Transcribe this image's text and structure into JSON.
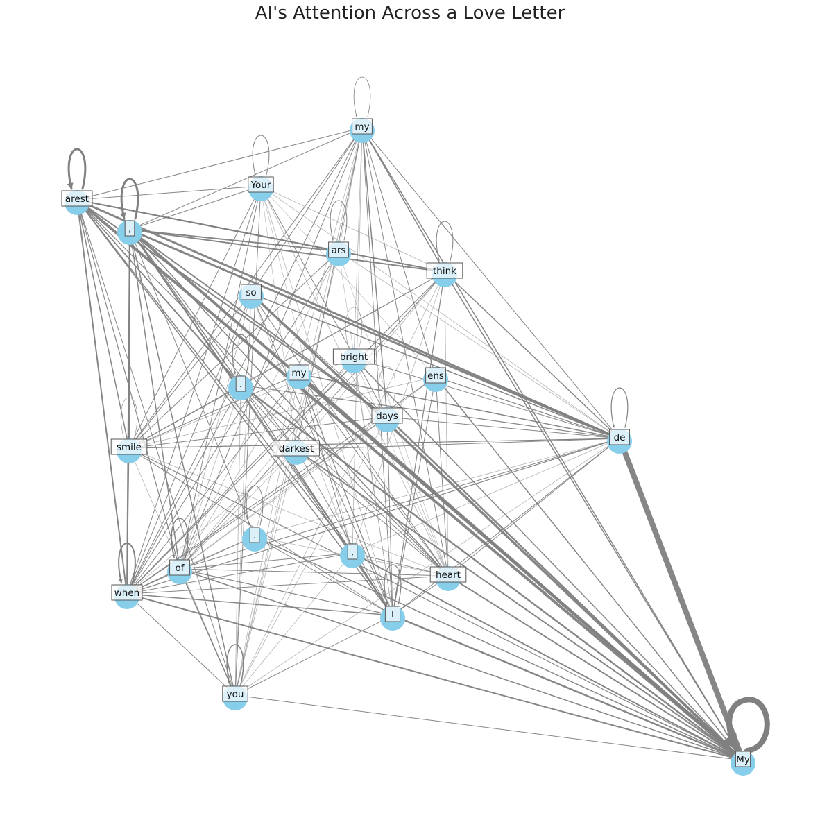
{
  "title": "AI's Attention Across a Love Letter",
  "colors": {
    "node": "#87ceeb",
    "edge": "#808080",
    "label_bg": "#ffffff",
    "label_border": "#555555"
  },
  "nodes": [
    {
      "id": "my_top",
      "label": " my"
    },
    {
      "id": "your",
      "label": "Your"
    },
    {
      "id": "arest",
      "label": "arest"
    },
    {
      "id": "comma1",
      "label": ","
    },
    {
      "id": "ars",
      "label": "ars"
    },
    {
      "id": "think",
      "label": " think"
    },
    {
      "id": "so",
      "label": " so"
    },
    {
      "id": "bright",
      "label": " bright"
    },
    {
      "id": "my_mid",
      "label": " my"
    },
    {
      "id": "period1",
      "label": "."
    },
    {
      "id": "ens",
      "label": "ens"
    },
    {
      "id": "days",
      "label": " days"
    },
    {
      "id": "smile",
      "label": " smile"
    },
    {
      "id": "darkest",
      "label": " darkest"
    },
    {
      "id": "de",
      "label": " de"
    },
    {
      "id": "period2",
      "label": "."
    },
    {
      "id": "comma2",
      "label": ","
    },
    {
      "id": "of",
      "label": " of"
    },
    {
      "id": "heart",
      "label": " heart"
    },
    {
      "id": "when",
      "label": " when"
    },
    {
      "id": "i",
      "label": " I"
    },
    {
      "id": "you",
      "label": " you"
    },
    {
      "id": "My",
      "label": "My"
    }
  ],
  "edges": [
    {
      "s": "My",
      "t": "My",
      "w": 8
    },
    {
      "s": "de",
      "t": "My",
      "w": 8
    },
    {
      "s": "arest",
      "t": "arest",
      "w": 3
    },
    {
      "s": "comma1",
      "t": "comma1",
      "w": 3
    },
    {
      "s": "when",
      "t": "when",
      "w": 2
    },
    {
      "s": "of",
      "t": "of",
      "w": 1.5
    },
    {
      "s": "i",
      "t": "i",
      "w": 1.2
    },
    {
      "s": "you",
      "t": "you",
      "w": 1.5
    },
    {
      "s": "period1",
      "t": "period1",
      "w": 1.2
    },
    {
      "s": "period2",
      "t": "period2",
      "w": 1
    },
    {
      "s": "my_top",
      "t": "my_top",
      "w": 0.8
    },
    {
      "s": "your",
      "t": "your",
      "w": 1
    },
    {
      "s": "ars",
      "t": "ars",
      "w": 1
    },
    {
      "s": "think",
      "t": "think",
      "w": 1
    },
    {
      "s": "de",
      "t": "de",
      "w": 1.2
    },
    {
      "s": "smile",
      "t": "smile",
      "w": 0.6
    },
    {
      "s": "bright",
      "t": "bright",
      "w": 0.5
    },
    {
      "s": "days",
      "t": "days",
      "w": 0.5
    },
    {
      "s": "arest",
      "t": "My",
      "w": 4
    },
    {
      "s": "comma1",
      "t": "My",
      "w": 4
    },
    {
      "s": "so",
      "t": "My",
      "w": 3.5
    },
    {
      "s": "my_mid",
      "t": "My",
      "w": 3.5
    },
    {
      "s": "comma1",
      "t": "de",
      "w": 3
    },
    {
      "s": "arest",
      "t": "de",
      "w": 3
    },
    {
      "s": "arest",
      "t": "ars",
      "w": 2
    },
    {
      "s": "arest",
      "t": "think",
      "w": 2
    },
    {
      "s": "comma1",
      "t": "ars",
      "w": 2
    },
    {
      "s": "comma1",
      "t": "think",
      "w": 2
    },
    {
      "s": "days",
      "t": "My",
      "w": 2.5
    },
    {
      "s": "period1",
      "t": "My",
      "w": 2.5
    },
    {
      "s": "comma2",
      "t": "My",
      "w": 2
    },
    {
      "s": "i",
      "t": "My",
      "w": 2.5
    },
    {
      "s": "when",
      "t": "My",
      "w": 2
    },
    {
      "s": "darkest",
      "t": "My",
      "w": 2
    },
    {
      "s": "heart",
      "t": "My",
      "w": 2
    },
    {
      "s": "think",
      "t": "My",
      "w": 1.5
    },
    {
      "s": "ens",
      "t": "My",
      "w": 1.5
    },
    {
      "s": "bright",
      "t": "My",
      "w": 1.5
    },
    {
      "s": "my_top",
      "t": "My",
      "w": 1.5
    },
    {
      "s": "you",
      "t": "My",
      "w": 1
    },
    {
      "s": "of",
      "t": "My",
      "w": 1.5
    },
    {
      "s": "smile",
      "t": "My",
      "w": 1.2
    },
    {
      "s": "period2",
      "t": "My",
      "w": 1.5
    },
    {
      "s": "arest",
      "t": "when",
      "w": 2
    },
    {
      "s": "arest",
      "t": "smile",
      "w": 1.5
    },
    {
      "s": "comma1",
      "t": "smile",
      "w": 2
    },
    {
      "s": "comma1",
      "t": "when",
      "w": 2
    },
    {
      "s": "comma1",
      "t": "of",
      "w": 1.5
    },
    {
      "s": "comma1",
      "t": "you",
      "w": 1.5
    },
    {
      "s": "arest",
      "t": "days",
      "w": 2
    },
    {
      "s": "arest",
      "t": "i",
      "w": 1.5
    },
    {
      "s": "arest",
      "t": "comma2",
      "w": 1.5
    },
    {
      "s": "comma1",
      "t": "days",
      "w": 2
    },
    {
      "s": "comma1",
      "t": "i",
      "w": 1.5
    },
    {
      "s": "comma1",
      "t": "heart",
      "w": 1.5
    },
    {
      "s": "arest",
      "t": "my_top",
      "w": 1
    },
    {
      "s": "arest",
      "t": "your",
      "w": 1
    },
    {
      "s": "comma1",
      "t": "my_top",
      "w": 1
    },
    {
      "s": "comma1",
      "t": "your",
      "w": 1
    },
    {
      "s": "my_top",
      "t": "think",
      "w": 1.5
    },
    {
      "s": "my_top",
      "t": "days",
      "w": 1.5
    },
    {
      "s": "my_top",
      "t": "de",
      "w": 1
    },
    {
      "s": "my_top",
      "t": "so",
      "w": 1
    },
    {
      "s": "my_top",
      "t": "ens",
      "w": 1
    },
    {
      "s": "my_top",
      "t": "smile",
      "w": 1
    },
    {
      "s": "my_top",
      "t": "when",
      "w": 1
    },
    {
      "s": "my_top",
      "t": "of",
      "w": 1
    },
    {
      "s": "my_top",
      "t": "heart",
      "w": 1
    },
    {
      "s": "my_top",
      "t": "i",
      "w": 1
    },
    {
      "s": "my_top",
      "t": "darkest",
      "w": 1
    },
    {
      "s": "my_top",
      "t": "period2",
      "w": 0.8
    },
    {
      "s": "my_top",
      "t": "comma2",
      "w": 0.8
    },
    {
      "s": "my_top",
      "t": "you",
      "w": 0.8
    },
    {
      "s": "my_top",
      "t": "ars",
      "w": 0.8
    },
    {
      "s": "my_top",
      "t": "bright",
      "w": 0.8
    },
    {
      "s": "your",
      "t": "days",
      "w": 1
    },
    {
      "s": "your",
      "t": "when",
      "w": 1
    },
    {
      "s": "your",
      "t": "smile",
      "w": 1
    },
    {
      "s": "your",
      "t": "of",
      "w": 1
    },
    {
      "s": "your",
      "t": "you",
      "w": 1
    },
    {
      "s": "your",
      "t": "heart",
      "w": 0.8
    },
    {
      "s": "your",
      "t": "i",
      "w": 0.8
    },
    {
      "s": "your",
      "t": "de",
      "w": 0.8
    },
    {
      "s": "your",
      "t": "think",
      "w": 0.8
    },
    {
      "s": "your",
      "t": "comma2",
      "w": 0.6
    },
    {
      "s": "your",
      "t": "darkest",
      "w": 0.6
    },
    {
      "s": "your",
      "t": "ens",
      "w": 0.6
    },
    {
      "s": "ars",
      "t": "think",
      "w": 1.2
    },
    {
      "s": "ars",
      "t": "smile",
      "w": 1
    },
    {
      "s": "ars",
      "t": "when",
      "w": 1
    },
    {
      "s": "ars",
      "t": "de",
      "w": 0.8
    },
    {
      "s": "ars",
      "t": "you",
      "w": 0.8
    },
    {
      "s": "ars",
      "t": "of",
      "w": 0.8
    },
    {
      "s": "ars",
      "t": "i",
      "w": 0.6
    },
    {
      "s": "ars",
      "t": "heart",
      "w": 0.6
    },
    {
      "s": "think",
      "t": "de",
      "w": 1.5
    },
    {
      "s": "think",
      "t": "smile",
      "w": 1
    },
    {
      "s": "think",
      "t": "when",
      "w": 1.2
    },
    {
      "s": "think",
      "t": "of",
      "w": 1
    },
    {
      "s": "think",
      "t": "i",
      "w": 1.2
    },
    {
      "s": "think",
      "t": "you",
      "w": 0.8
    },
    {
      "s": "think",
      "t": "period1",
      "w": 0.8
    },
    {
      "s": "think",
      "t": "heart",
      "w": 0.8
    },
    {
      "s": "think",
      "t": "darkest",
      "w": 0.8
    },
    {
      "s": "think",
      "t": "comma2",
      "w": 0.8
    },
    {
      "s": "so",
      "t": "de",
      "w": 1.5
    },
    {
      "s": "so",
      "t": "smile",
      "w": 1
    },
    {
      "s": "so",
      "t": "when",
      "w": 1
    },
    {
      "s": "so",
      "t": "i",
      "w": 1
    },
    {
      "s": "so",
      "t": "you",
      "w": 0.8
    },
    {
      "s": "so",
      "t": "heart",
      "w": 1
    },
    {
      "s": "so",
      "t": "days",
      "w": 1
    },
    {
      "s": "so",
      "t": "comma2",
      "w": 0.8
    },
    {
      "s": "so",
      "t": "of",
      "w": 0.8
    },
    {
      "s": "my_mid",
      "t": "de",
      "w": 1.5
    },
    {
      "s": "my_mid",
      "t": "i",
      "w": 1.2
    },
    {
      "s": "my_mid",
      "t": "when",
      "w": 1
    },
    {
      "s": "my_mid",
      "t": "smile",
      "w": 1
    },
    {
      "s": "my_mid",
      "t": "heart",
      "w": 1
    },
    {
      "s": "my_mid",
      "t": "you",
      "w": 0.8
    },
    {
      "s": "my_mid",
      "t": "of",
      "w": 0.8
    },
    {
      "s": "my_mid",
      "t": "comma2",
      "w": 1
    },
    {
      "s": "period1",
      "t": "de",
      "w": 1.2
    },
    {
      "s": "period1",
      "t": "i",
      "w": 1
    },
    {
      "s": "period1",
      "t": "heart",
      "w": 1
    },
    {
      "s": "period1",
      "t": "when",
      "w": 1
    },
    {
      "s": "period1",
      "t": "smile",
      "w": 1
    },
    {
      "s": "period1",
      "t": "comma2",
      "w": 1
    },
    {
      "s": "period1",
      "t": "you",
      "w": 0.8
    },
    {
      "s": "period1",
      "t": "of",
      "w": 0.8
    },
    {
      "s": "ens",
      "t": "de",
      "w": 1.2
    },
    {
      "s": "ens",
      "t": "i",
      "w": 1
    },
    {
      "s": "ens",
      "t": "heart",
      "w": 1
    },
    {
      "s": "ens",
      "t": "when",
      "w": 1
    },
    {
      "s": "ens",
      "t": "smile",
      "w": 0.8
    },
    {
      "s": "ens",
      "t": "of",
      "w": 0.8
    },
    {
      "s": "bright",
      "t": "de",
      "w": 1
    },
    {
      "s": "bright",
      "t": "when",
      "w": 1
    },
    {
      "s": "bright",
      "t": "i",
      "w": 0.8
    },
    {
      "s": "bright",
      "t": "smile",
      "w": 0.8
    },
    {
      "s": "bright",
      "t": "of",
      "w": 0.8
    },
    {
      "s": "bright",
      "t": "heart",
      "w": 0.6
    },
    {
      "s": "days",
      "t": "de",
      "w": 1
    },
    {
      "s": "days",
      "t": "i",
      "w": 1
    },
    {
      "s": "days",
      "t": "when",
      "w": 1
    },
    {
      "s": "days",
      "t": "smile",
      "w": 1
    },
    {
      "s": "days",
      "t": "of",
      "w": 0.8
    },
    {
      "s": "days",
      "t": "heart",
      "w": 0.8
    },
    {
      "s": "days",
      "t": "you",
      "w": 0.8
    },
    {
      "s": "smile",
      "t": "de",
      "w": 1
    },
    {
      "s": "smile",
      "t": "when",
      "w": 1
    },
    {
      "s": "smile",
      "t": "i",
      "w": 1
    },
    {
      "s": "smile",
      "t": "heart",
      "w": 0.8
    },
    {
      "s": "smile",
      "t": "you",
      "w": 0.8
    },
    {
      "s": "darkest",
      "t": "de",
      "w": 1
    },
    {
      "s": "darkest",
      "t": "i",
      "w": 1
    },
    {
      "s": "darkest",
      "t": "heart",
      "w": 1
    },
    {
      "s": "darkest",
      "t": "when",
      "w": 0.8
    },
    {
      "s": "darkest",
      "t": "you",
      "w": 0.8
    },
    {
      "s": "darkest",
      "t": "of",
      "w": 0.8
    },
    {
      "s": "de",
      "t": "when",
      "w": 1.2
    },
    {
      "s": "de",
      "t": "of",
      "w": 1
    },
    {
      "s": "de",
      "t": "i",
      "w": 1
    },
    {
      "s": "de",
      "t": "heart",
      "w": 1
    },
    {
      "s": "de",
      "t": "smile",
      "w": 1
    },
    {
      "s": "de",
      "t": "period2",
      "w": 0.8
    },
    {
      "s": "de",
      "t": "comma2",
      "w": 0.8
    },
    {
      "s": "period2",
      "t": "when",
      "w": 1
    },
    {
      "s": "period2",
      "t": "i",
      "w": 1
    },
    {
      "s": "period2",
      "t": "heart",
      "w": 0.8
    },
    {
      "s": "period2",
      "t": "of",
      "w": 0.8
    },
    {
      "s": "comma2",
      "t": "i",
      "w": 1.2
    },
    {
      "s": "comma2",
      "t": "heart",
      "w": 1
    },
    {
      "s": "comma2",
      "t": "when",
      "w": 1
    },
    {
      "s": "comma2",
      "t": "of",
      "w": 1
    },
    {
      "s": "comma2",
      "t": "you",
      "w": 0.8
    },
    {
      "s": "of",
      "t": "when",
      "w": 1.2
    },
    {
      "s": "of",
      "t": "i",
      "w": 1.2
    },
    {
      "s": "of",
      "t": "you",
      "w": 1.5
    },
    {
      "s": "of",
      "t": "heart",
      "w": 1
    },
    {
      "s": "heart",
      "t": "i",
      "w": 1
    },
    {
      "s": "heart",
      "t": "when",
      "w": 1
    },
    {
      "s": "when",
      "t": "i",
      "w": 1.5
    },
    {
      "s": "when",
      "t": "you",
      "w": 1
    },
    {
      "s": "i",
      "t": "you",
      "w": 1
    },
    {
      "s": "you",
      "t": "de",
      "w": 0.8
    },
    {
      "s": "comma1",
      "t": "period2",
      "w": 1
    },
    {
      "s": "comma1",
      "t": "comma2",
      "w": 1.5
    },
    {
      "s": "arest",
      "t": "period1",
      "w": 1.5
    },
    {
      "s": "arest",
      "t": "of",
      "w": 1.2
    },
    {
      "s": "arest",
      "t": "you",
      "w": 1
    },
    {
      "s": "arest",
      "t": "heart",
      "w": 1.2
    },
    {
      "s": "arest",
      "t": "darkest",
      "w": 1
    },
    {
      "s": "comma1",
      "t": "darkest",
      "w": 1.2
    },
    {
      "s": "comma1",
      "t": "period1",
      "w": 1.5
    }
  ]
}
